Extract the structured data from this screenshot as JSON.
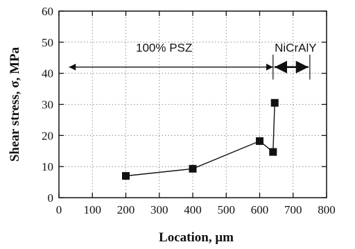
{
  "chart_data": {
    "type": "line",
    "title": "",
    "xlabel": "Location, μm",
    "ylabel": "Shear stress, σ, MPa",
    "xlim": [
      0,
      800
    ],
    "ylim": [
      0,
      60
    ],
    "xticks": [
      0,
      100,
      200,
      300,
      400,
      500,
      600,
      700,
      800
    ],
    "yticks": [
      0,
      10,
      20,
      30,
      40,
      50,
      60
    ],
    "grid": true,
    "series": [
      {
        "x": [
          200,
          400,
          600,
          640,
          645
        ],
        "y": [
          7,
          9.3,
          18.2,
          14.7,
          30.5
        ],
        "marker": "square",
        "color": "#111111"
      }
    ],
    "annotations": [
      {
        "text": "100% PSZ",
        "x_from": 30,
        "x_to": 640,
        "y": 42
      },
      {
        "text": "NiCrAlY",
        "x_from": 640,
        "x_to": 750,
        "y": 42
      }
    ]
  }
}
